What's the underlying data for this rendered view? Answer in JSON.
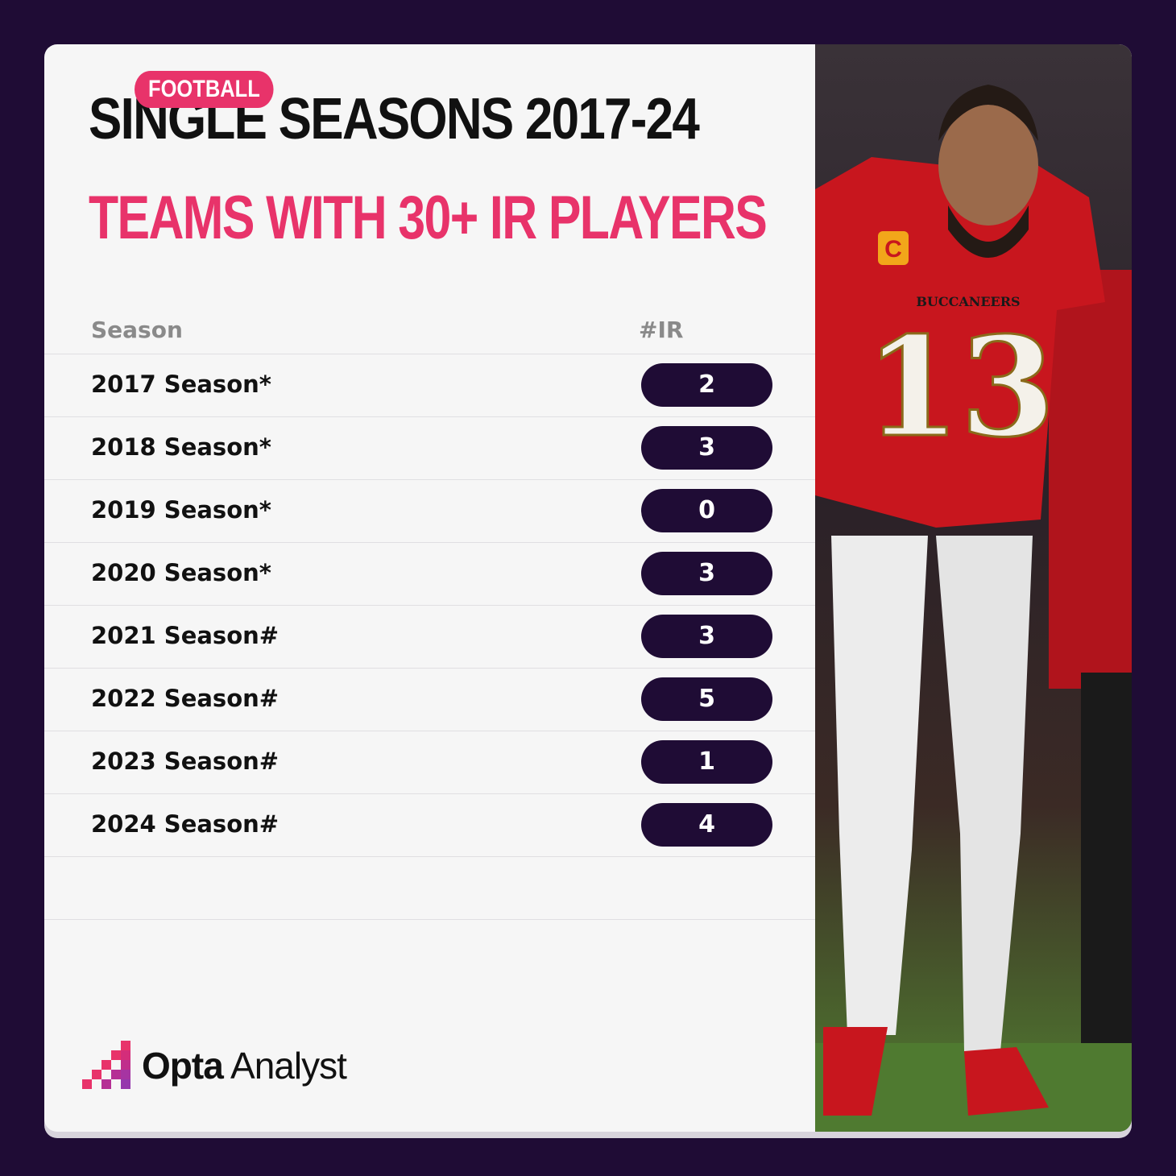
{
  "badge": "FOOTBALL",
  "title": "SINGLE SEASONS 2017-24",
  "subtitle": "TEAMS WITH 30+ IR PLAYERS",
  "table": {
    "col_season": "Season",
    "col_ir": "#IR",
    "rows": [
      {
        "season": "2017 Season*",
        "ir": "2"
      },
      {
        "season": "2018 Season*",
        "ir": "3"
      },
      {
        "season": "2019 Season*",
        "ir": "0"
      },
      {
        "season": "2020 Season*",
        "ir": "3"
      },
      {
        "season": "2021 Season#",
        "ir": "3"
      },
      {
        "season": "2022 Season#",
        "ir": "5"
      },
      {
        "season": "2023 Season#",
        "ir": "1"
      },
      {
        "season": "2024 Season#",
        "ir": "4"
      }
    ]
  },
  "logo": {
    "bold": "Opta",
    "light": "Analyst"
  },
  "photo": {
    "jersey_number": "13",
    "jersey_text": "BUCCANEERS",
    "captain_patch": "C",
    "colors": {
      "jersey": "#c8161e",
      "pants": "#ededed",
      "skin": "#9b6a4b"
    }
  },
  "colors": {
    "background": "#1f0c35",
    "accent": "#e8336a",
    "pill": "#1f0c35"
  }
}
